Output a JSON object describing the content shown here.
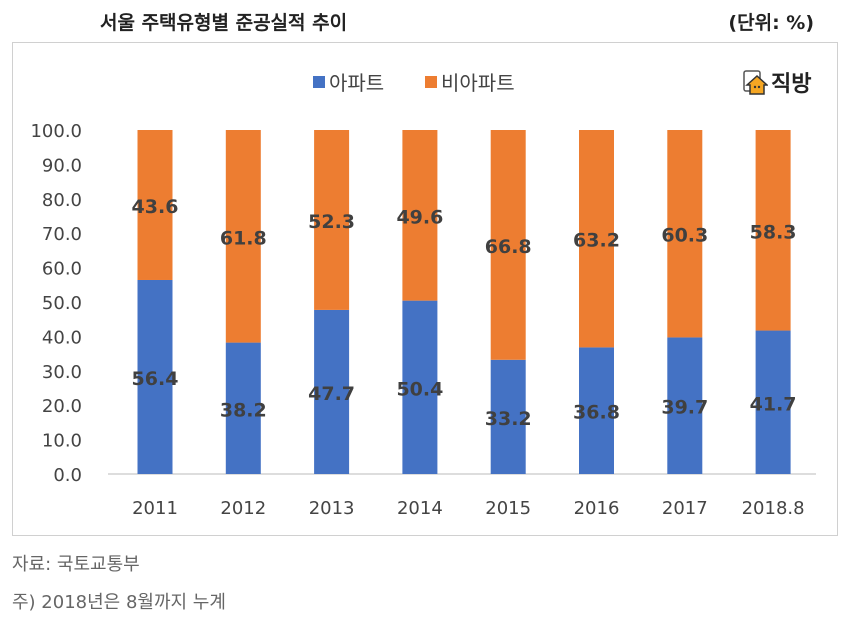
{
  "title": "서울 주택유형별 준공실적 추이",
  "unit": "(단위: %)",
  "logo_text": "직방",
  "source": "자료: 국토교통부",
  "note": "주) 2018년은 8월까지 누계",
  "chart_data": {
    "type": "bar",
    "stacked": true,
    "categories": [
      "2011",
      "2012",
      "2013",
      "2014",
      "2015",
      "2016",
      "2017",
      "2018.8"
    ],
    "series": [
      {
        "name": "아파트",
        "color": "#4472C4",
        "values": [
          56.4,
          38.2,
          47.7,
          50.4,
          33.2,
          36.8,
          39.7,
          41.7
        ]
      },
      {
        "name": "비아파트",
        "color": "#ED7D31",
        "values": [
          43.6,
          61.8,
          52.3,
          49.6,
          66.8,
          63.2,
          60.3,
          58.3
        ]
      }
    ],
    "ylim": [
      0,
      100
    ],
    "yticks": [
      "0.0",
      "10.0",
      "20.0",
      "30.0",
      "40.0",
      "50.0",
      "60.0",
      "70.0",
      "80.0",
      "90.0",
      "100.0"
    ],
    "legend": "top",
    "grid": false
  }
}
